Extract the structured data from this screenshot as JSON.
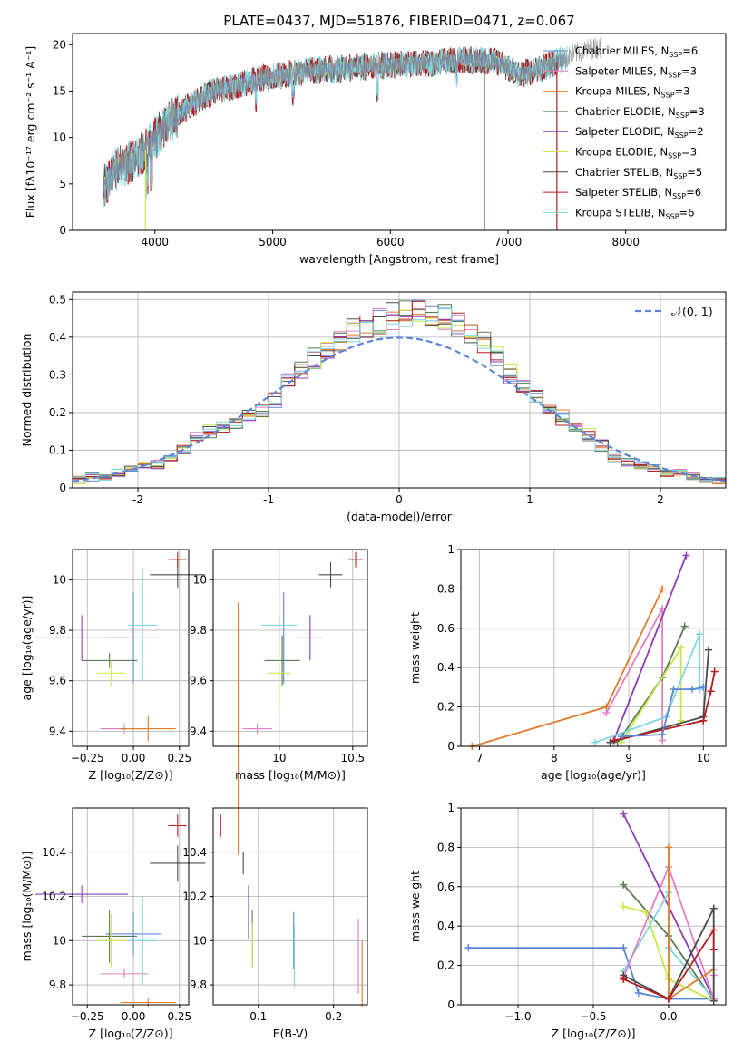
{
  "figure_title": "PLATE=0437, MJD=51876, FIBERID=0471, z=0.067",
  "colors": {
    "Chabrier MILES": "#5b86d6",
    "Salpeter MILES": "#e27fc2",
    "Kroupa MILES": "#e07b2b",
    "Chabrier ELODIE": "#5a7a55",
    "Salpeter ELODIE": "#8e3ab5",
    "Kroupa ELODIE": "#c6e94a",
    "Chabrier STELIB": "#4a4a4a",
    "Salpeter STELIB": "#b51c1c",
    "Kroupa STELIB": "#7fd5df",
    "normal": "#5b86d6"
  },
  "chart_data": [
    {
      "id": "spectrum",
      "type": "line",
      "title": "PLATE=0437, MJD=51876, FIBERID=0471, z=0.067",
      "xlabel": "wavelength [Angstrom, rest frame]",
      "ylabel_html": "Flux [fλ10⁻¹⁷ erg cm⁻² s⁻¹ A⁻¹]",
      "xlim": [
        3300,
        8850
      ],
      "ylim": [
        0,
        21.2
      ],
      "xticks": [
        4000,
        5000,
        6000,
        7000,
        8000
      ],
      "yticks": [
        0,
        5,
        10,
        15,
        20
      ],
      "series": [
        {
          "name": "Chabrier MILES",
          "n": "6"
        },
        {
          "name": "Salpeter MILES",
          "n": "3"
        },
        {
          "name": "Kroupa MILES",
          "n": "3"
        },
        {
          "name": "Chabrier ELODIE",
          "n": "3"
        },
        {
          "name": "Salpeter ELODIE",
          "n": "2"
        },
        {
          "name": "Kroupa ELODIE",
          "n": "3"
        },
        {
          "name": "Chabrier STELIB",
          "n": "5"
        },
        {
          "name": "Salpeter STELIB",
          "n": "6"
        },
        {
          "name": "Kroupa STELIB",
          "n": "6"
        }
      ],
      "continuum_x": [
        3560,
        3650,
        3800,
        3950,
        4100,
        4300,
        4500,
        4800,
        5200,
        5600,
        6000,
        6300,
        6600,
        6900,
        7100,
        7300,
        7500,
        7600,
        7700,
        7850
      ],
      "continuum_y": [
        4.5,
        6.5,
        7.5,
        9.0,
        11.5,
        13.5,
        15.0,
        16.0,
        17.0,
        17.5,
        17.8,
        18.0,
        18.4,
        18.2,
        16.8,
        17.5,
        18.6,
        19.2,
        19.6,
        19.8
      ],
      "ssp_x_max": [
        7400,
        7500,
        7500,
        7420,
        7500,
        7500,
        7420,
        7410,
        7500
      ],
      "spikes_down": [
        3920,
        6800,
        7415
      ],
      "spike_colors": [
        "Kroupa ELODIE",
        "Chabrier ELODIE",
        "Salpeter STELIB"
      ]
    },
    {
      "id": "residuals",
      "type": "histogram",
      "xlabel": "(data-model)/error",
      "ylabel": "Normed distribution",
      "xlim": [
        -2.5,
        2.5
      ],
      "ylim": [
        0,
        0.52
      ],
      "xticks": [
        -2,
        -1,
        0,
        1,
        2
      ],
      "yticks": [
        0,
        0.1,
        0.2,
        0.3,
        0.4,
        0.5
      ],
      "bins": [
        -2.5,
        -2.4,
        -2.3,
        -2.2,
        -2.1,
        -2.0,
        -1.9,
        -1.8,
        -1.7,
        -1.6,
        -1.5,
        -1.4,
        -1.3,
        -1.2,
        -1.1,
        -1.0,
        -0.9,
        -0.8,
        -0.7,
        -0.6,
        -0.5,
        -0.4,
        -0.3,
        -0.2,
        -0.1,
        0.0,
        0.1,
        0.2,
        0.3,
        0.4,
        0.5,
        0.6,
        0.7,
        0.8,
        0.9,
        1.0,
        1.1,
        1.2,
        1.3,
        1.4,
        1.5,
        1.6,
        1.7,
        1.8,
        1.9,
        2.0,
        2.1,
        2.2,
        2.3,
        2.4,
        2.5
      ],
      "density": [
        0.02,
        0.03,
        0.03,
        0.04,
        0.05,
        0.06,
        0.06,
        0.08,
        0.1,
        0.13,
        0.15,
        0.16,
        0.17,
        0.19,
        0.21,
        0.23,
        0.29,
        0.31,
        0.34,
        0.37,
        0.39,
        0.41,
        0.42,
        0.44,
        0.45,
        0.46,
        0.46,
        0.46,
        0.45,
        0.44,
        0.41,
        0.38,
        0.34,
        0.3,
        0.27,
        0.24,
        0.21,
        0.19,
        0.16,
        0.14,
        0.11,
        0.08,
        0.07,
        0.06,
        0.05,
        0.04,
        0.04,
        0.03,
        0.02,
        0.02
      ],
      "series_names": [
        "Chabrier MILES",
        "Salpeter MILES",
        "Kroupa MILES",
        "Chabrier ELODIE",
        "Salpeter ELODIE",
        "Kroupa ELODIE",
        "Chabrier STELIB",
        "Salpeter STELIB",
        "Kroupa STELIB"
      ],
      "reference_line": {
        "name": "𝒩(0, 1)",
        "label": "N(0,1)"
      }
    },
    {
      "id": "age_vs_Z",
      "type": "scatter",
      "xlabel": "Z [log₁₀(Z/Z⊙)]",
      "ylabel": "age [log₁₀(age/yr)]",
      "xlim": [
        -0.33,
        0.3
      ],
      "ylim": [
        9.34,
        10.12
      ],
      "xticks": [
        -0.25,
        0.0,
        0.25
      ],
      "xticklabels": [
        "−0.25",
        "0.00",
        "0.25"
      ],
      "yticks": [
        9.4,
        9.6,
        9.8,
        10.0
      ],
      "points": [
        {
          "series": "Chabrier MILES",
          "x": 0.0,
          "y": 9.77,
          "xerr": 0.15,
          "yerr": 0.18
        },
        {
          "series": "Salpeter MILES",
          "x": -0.05,
          "y": 9.41,
          "xerr": 0.13,
          "yerr": 0.02
        },
        {
          "series": "Kroupa MILES",
          "x": 0.08,
          "y": 9.41,
          "xerr": 0.15,
          "yerr": 0.05
        },
        {
          "series": "Chabrier ELODIE",
          "x": -0.13,
          "y": 9.68,
          "xerr": 0.15,
          "yerr": 0.03
        },
        {
          "series": "Salpeter ELODIE",
          "x": -0.28,
          "y": 9.77,
          "xerr": 0.25,
          "yerr": 0.09
        },
        {
          "series": "Kroupa ELODIE",
          "x": -0.12,
          "y": 9.63,
          "xerr": 0.08,
          "yerr": 0.05
        },
        {
          "series": "Chabrier STELIB",
          "x": 0.24,
          "y": 10.02,
          "xerr": 0.15,
          "yerr": 0.05
        },
        {
          "series": "Salpeter STELIB",
          "x": 0.24,
          "y": 10.08,
          "xerr": 0.05,
          "yerr": 0.03
        },
        {
          "series": "Kroupa STELIB",
          "x": 0.05,
          "y": 9.82,
          "xerr": 0.08,
          "yerr": 0.22
        }
      ]
    },
    {
      "id": "age_vs_mass",
      "type": "scatter",
      "xlabel": "mass [log₁₀(M/M⊙)]",
      "ylabel": "",
      "xlim": [
        9.55,
        10.6
      ],
      "ylim": [
        9.34,
        10.12
      ],
      "xticks": [
        10.0,
        10.5
      ],
      "yticks": [
        9.4,
        9.6,
        9.8,
        10.0
      ],
      "points": [
        {
          "series": "Chabrier MILES",
          "x": 10.03,
          "y": 9.77,
          "xerr": 0.0,
          "yerr": 0.18
        },
        {
          "series": "Salpeter MILES",
          "x": 9.85,
          "y": 9.41,
          "xerr": 0.1,
          "yerr": 0.02
        },
        {
          "series": "Kroupa MILES",
          "x": 9.72,
          "y": 9.41,
          "xerr": 0.0,
          "yerr": 0.5
        },
        {
          "series": "Chabrier ELODIE",
          "x": 10.02,
          "y": 9.68,
          "xerr": 0.12,
          "yerr": 0.1
        },
        {
          "series": "Salpeter ELODIE",
          "x": 10.21,
          "y": 9.77,
          "xerr": 0.1,
          "yerr": 0.09
        },
        {
          "series": "Kroupa ELODIE",
          "x": 10.0,
          "y": 9.63,
          "xerr": 0.08,
          "yerr": 0.13
        },
        {
          "series": "Chabrier STELIB",
          "x": 10.35,
          "y": 10.02,
          "xerr": 0.08,
          "yerr": 0.05
        },
        {
          "series": "Salpeter STELIB",
          "x": 10.52,
          "y": 10.08,
          "xerr": 0.05,
          "yerr": 0.03
        },
        {
          "series": "Kroupa STELIB",
          "x": 10.0,
          "y": 9.82,
          "xerr": 0.12,
          "yerr": 0.04
        }
      ]
    },
    {
      "id": "mass_weight_vs_age",
      "type": "line",
      "xlabel": "age [log₁₀(age/yr)]",
      "ylabel": "mass weight",
      "xlim": [
        6.75,
        10.3
      ],
      "ylim": [
        0,
        1
      ],
      "xticks": [
        7,
        8,
        9,
        10
      ],
      "yticks": [
        0.0,
        0.2,
        0.4,
        0.6,
        0.8,
        1.0
      ],
      "series": [
        {
          "name": "Kroupa MILES",
          "x": [
            6.9,
            8.7,
            9.45
          ],
          "y": [
            0.0,
            0.2,
            0.8
          ]
        },
        {
          "name": "Salpeter MILES",
          "x": [
            8.7,
            9.45,
            9.45
          ],
          "y": [
            0.17,
            0.7,
            0.03
          ]
        },
        {
          "name": "Salpeter ELODIE",
          "x": [
            8.8,
            9.77
          ],
          "y": [
            0.03,
            0.97
          ]
        },
        {
          "name": "Chabrier ELODIE",
          "x": [
            8.85,
            9.45,
            9.75
          ],
          "y": [
            0.02,
            0.35,
            0.61
          ]
        },
        {
          "name": "Kroupa ELODIE",
          "x": [
            8.9,
            9.7,
            9.7
          ],
          "y": [
            0.02,
            0.5,
            0.13
          ]
        },
        {
          "name": "Kroupa STELIB",
          "x": [
            8.55,
            9.5,
            9.95,
            9.95
          ],
          "y": [
            0.02,
            0.15,
            0.57,
            0.29
          ]
        },
        {
          "name": "Chabrier STELIB",
          "x": [
            8.75,
            10.0,
            10.07
          ],
          "y": [
            0.02,
            0.15,
            0.49
          ]
        },
        {
          "name": "Salpeter STELIB",
          "x": [
            8.8,
            10.0,
            10.1,
            10.15
          ],
          "y": [
            0.03,
            0.13,
            0.28,
            0.38
          ]
        },
        {
          "name": "Chabrier MILES",
          "x": [
            8.9,
            9.45,
            9.6,
            9.85,
            10.0
          ],
          "y": [
            0.05,
            0.06,
            0.29,
            0.29,
            0.3
          ]
        }
      ]
    },
    {
      "id": "mass_vs_Z",
      "type": "scatter",
      "xlabel": "Z [log₁₀(Z/Z⊙)]",
      "ylabel": "mass [log₁₀(M/M⊙)]",
      "xlim": [
        -0.33,
        0.3
      ],
      "ylim": [
        9.71,
        10.6
      ],
      "xticks": [
        -0.25,
        0.0,
        0.25
      ],
      "xticklabels": [
        "−0.25",
        "0.00",
        "0.25"
      ],
      "yticks": [
        9.8,
        10.0,
        10.2,
        10.4
      ],
      "points": [
        {
          "series": "Chabrier MILES",
          "x": 0.0,
          "y": 10.03,
          "xerr": 0.15,
          "yerr": 0.1
        },
        {
          "series": "Salpeter MILES",
          "x": -0.05,
          "y": 9.85,
          "xerr": 0.13,
          "yerr": 0.02
        },
        {
          "series": "Kroupa MILES",
          "x": 0.08,
          "y": 9.72,
          "xerr": 0.15,
          "yerr": 0.02
        },
        {
          "series": "Chabrier ELODIE",
          "x": -0.13,
          "y": 10.02,
          "xerr": 0.15,
          "yerr": 0.12
        },
        {
          "series": "Salpeter ELODIE",
          "x": -0.28,
          "y": 10.21,
          "xerr": 0.25,
          "yerr": 0.04
        },
        {
          "series": "Kroupa ELODIE",
          "x": -0.12,
          "y": 10.0,
          "xerr": 0.08,
          "yerr": 0.12
        },
        {
          "series": "Chabrier STELIB",
          "x": 0.24,
          "y": 10.35,
          "xerr": 0.15,
          "yerr": 0.08
        },
        {
          "series": "Salpeter STELIB",
          "x": 0.24,
          "y": 10.52,
          "xerr": 0.05,
          "yerr": 0.05
        },
        {
          "series": "Kroupa STELIB",
          "x": 0.05,
          "y": 10.0,
          "xerr": 0.08,
          "yerr": 0.2
        }
      ]
    },
    {
      "id": "mass_vs_EBV",
      "type": "scatter",
      "xlabel": "E(B-V)",
      "ylabel": "",
      "xlim": [
        0.04,
        0.245
      ],
      "ylim": [
        9.71,
        10.6
      ],
      "xticks": [
        0.1,
        0.2
      ],
      "yticks": [
        9.8,
        10.0,
        10.2,
        10.4
      ],
      "points": [
        {
          "series": "Salpeter STELIB",
          "x": 0.05,
          "y": 10.52,
          "xerr": 0.0,
          "yerr": 0.05
        },
        {
          "series": "Chabrier STELIB",
          "x": 0.08,
          "y": 10.35,
          "xerr": 0.0,
          "yerr": 0.05
        },
        {
          "series": "Salpeter ELODIE",
          "x": 0.087,
          "y": 10.13,
          "xerr": 0.0,
          "yerr": 0.12
        },
        {
          "series": "Chabrier ELODIE",
          "x": 0.092,
          "y": 10.01,
          "xerr": 0.0,
          "yerr": 0.13
        },
        {
          "series": "Kroupa ELODIE",
          "x": 0.092,
          "y": 9.98,
          "xerr": 0.0,
          "yerr": 0.1
        },
        {
          "series": "Chabrier MILES",
          "x": 0.147,
          "y": 10.0,
          "xerr": 0.0,
          "yerr": 0.13
        },
        {
          "series": "Kroupa STELIB",
          "x": 0.148,
          "y": 9.93,
          "xerr": 0.0,
          "yerr": 0.14
        },
        {
          "series": "Salpeter MILES",
          "x": 0.233,
          "y": 9.93,
          "xerr": 0.0,
          "yerr": 0.17
        },
        {
          "series": "Kroupa MILES",
          "x": 0.238,
          "y": 9.85,
          "xerr": 0.0,
          "yerr": 0.15
        }
      ]
    },
    {
      "id": "mass_weight_vs_Z",
      "type": "line",
      "xlabel": "Z [log₁₀(Z/Z⊙)]",
      "ylabel": "mass weight",
      "xlim": [
        -1.38,
        0.38
      ],
      "ylim": [
        0,
        1
      ],
      "xticks": [
        -1.0,
        -0.5,
        0.0
      ],
      "xticklabels": [
        "−1.0",
        "−0.5",
        "0.0"
      ],
      "yticks": [
        0.0,
        0.2,
        0.4,
        0.6,
        0.8,
        1.0
      ],
      "series": [
        {
          "name": "Chabrier MILES",
          "x": [
            -1.33,
            -0.3,
            -0.2,
            0.0,
            0.3
          ],
          "y": [
            0.29,
            0.29,
            0.06,
            0.03,
            0.03
          ]
        },
        {
          "name": "Salpeter ELODIE",
          "x": [
            -0.3,
            0.3
          ],
          "y": [
            0.97,
            0.03
          ]
        },
        {
          "name": "Chabrier ELODIE",
          "x": [
            -0.3,
            0.0,
            0.3
          ],
          "y": [
            0.61,
            0.35,
            0.02
          ]
        },
        {
          "name": "Kroupa ELODIE",
          "x": [
            -0.3,
            -0.15,
            0.0,
            0.3
          ],
          "y": [
            0.5,
            0.47,
            0.13,
            0.02
          ]
        },
        {
          "name": "Kroupa STELIB",
          "x": [
            -0.3,
            0.0,
            0.0,
            0.3
          ],
          "y": [
            0.17,
            0.57,
            0.29,
            0.03
          ]
        },
        {
          "name": "Salpeter MILES",
          "x": [
            -0.3,
            0.0,
            0.3,
            0.3
          ],
          "y": [
            0.14,
            0.7,
            0.03,
            0.15
          ]
        },
        {
          "name": "Kroupa MILES",
          "x": [
            0.0,
            0.0,
            0.3
          ],
          "y": [
            0.8,
            0.03,
            0.18
          ]
        },
        {
          "name": "Chabrier STELIB",
          "x": [
            -0.3,
            0.0,
            0.3,
            0.3
          ],
          "y": [
            0.15,
            0.03,
            0.49,
            0.02
          ]
        },
        {
          "name": "Salpeter STELIB",
          "x": [
            -0.3,
            0.0,
            0.3,
            0.3
          ],
          "y": [
            0.13,
            0.03,
            0.38,
            0.28
          ]
        }
      ]
    }
  ]
}
